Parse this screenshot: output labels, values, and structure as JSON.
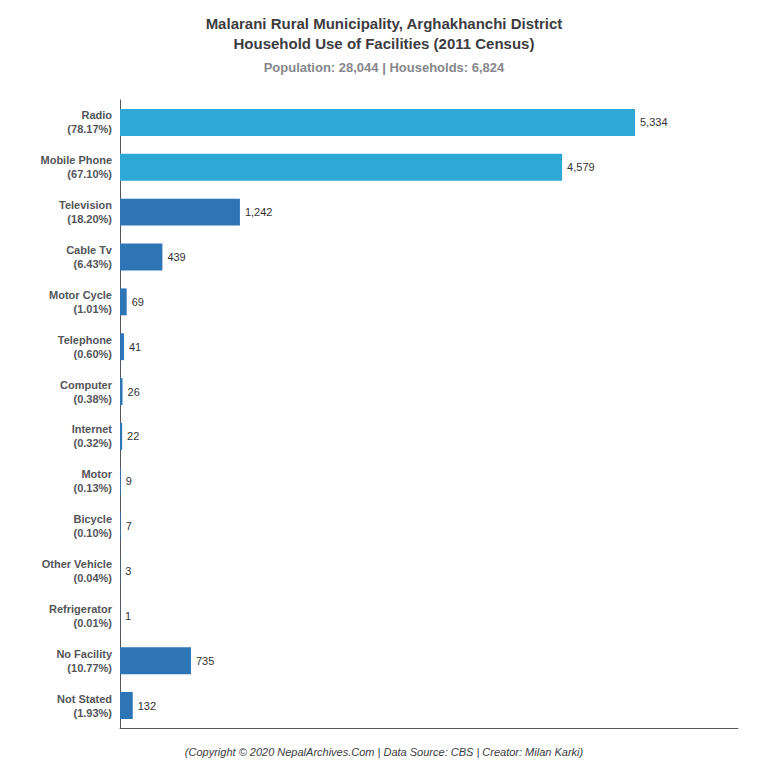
{
  "chart_data": {
    "type": "bar",
    "orientation": "horizontal",
    "title": "Malarani Rural Municipality, Arghakhanchi District\nHousehold Use of Facilities (2011 Census)",
    "subtitle": "Population: 28,044 | Households: 6,824",
    "annotations": [
      "(Copyright © 2020 NepalArchives.Com | Data Source: CBS | Creator: Milan Karki)"
    ],
    "categories": [
      "Radio\n(78.17%)",
      "Mobile Phone\n(67.10%)",
      "Television\n(18.20%)",
      "Cable Tv\n(6.43%)",
      "Motor Cycle\n(1.01%)",
      "Telephone\n(0.60%)",
      "Computer\n(0.38%)",
      "Internet\n(0.32%)",
      "Motor\n(0.13%)",
      "Bicycle\n(0.10%)",
      "Other Vehicle\n(0.04%)",
      "Refrigerator\n(0.01%)",
      "No Facility\n(10.77%)",
      "Not Stated\n(1.93%)"
    ],
    "values": [
      5334,
      4579,
      1242,
      439,
      69,
      41,
      26,
      22,
      9,
      7,
      3,
      1,
      735,
      132
    ],
    "value_labels": [
      "5,334",
      "4,579",
      "1,242",
      "439",
      "69",
      "41",
      "26",
      "22",
      "9",
      "7",
      "3",
      "1",
      "735",
      "132"
    ],
    "colors": [
      "#2ea8d5",
      "#2ea8d5",
      "#2e75b6",
      "#2e75b6",
      "#2e75b6",
      "#2e75b6",
      "#2e75b6",
      "#2e75b6",
      "#2e75b6",
      "#2e75b6",
      "#2e75b6",
      "#2e75b6",
      "#2e75b6",
      "#2e75b6"
    ],
    "xlim": [
      0,
      6400.8
    ],
    "data_labels": true,
    "tick_labels": "y",
    "grid": false
  }
}
